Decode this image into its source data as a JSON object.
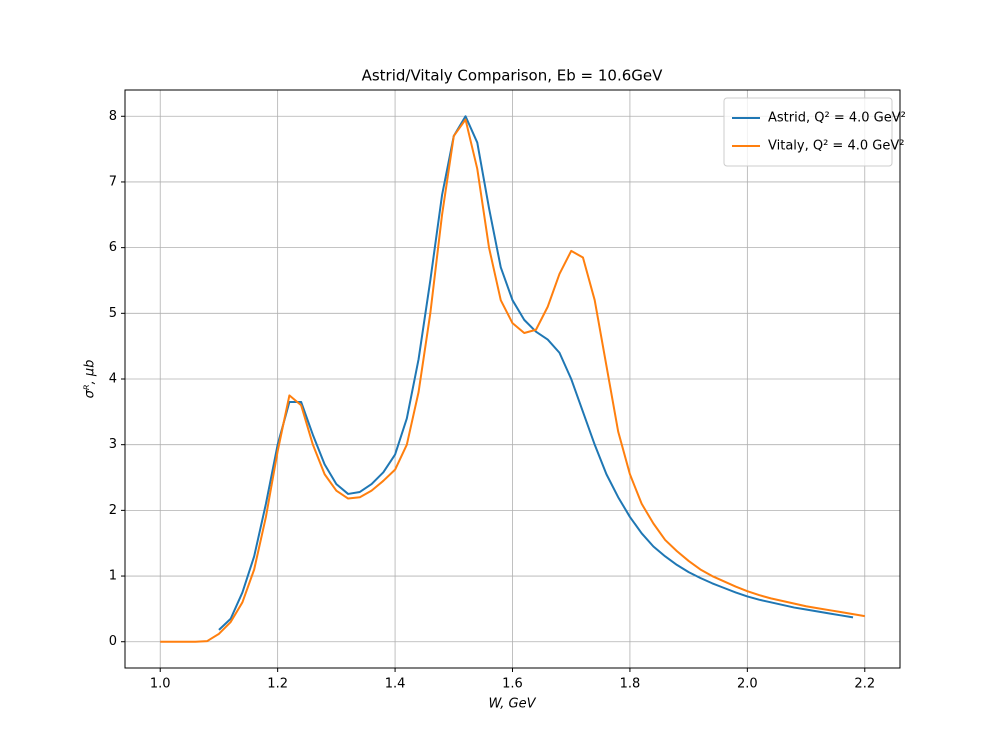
{
  "chart_data": {
    "type": "line",
    "title": "Astrid/Vitaly Comparison, Eb = 10.6GeV",
    "x_label": "W, GeV",
    "y_label": "σᴿ, μb",
    "x": [
      1.0,
      1.02,
      1.04,
      1.06,
      1.08,
      1.1,
      1.12,
      1.14,
      1.16,
      1.18,
      1.2,
      1.22,
      1.24,
      1.26,
      1.28,
      1.3,
      1.32,
      1.34,
      1.36,
      1.38,
      1.4,
      1.42,
      1.44,
      1.46,
      1.48,
      1.5,
      1.52,
      1.54,
      1.56,
      1.58,
      1.6,
      1.62,
      1.64,
      1.66,
      1.68,
      1.7,
      1.72,
      1.74,
      1.76,
      1.78,
      1.8,
      1.82,
      1.84,
      1.86,
      1.88,
      1.9,
      1.92,
      1.94,
      1.96,
      1.98,
      2.0,
      2.02,
      2.04,
      2.06,
      2.08,
      2.1,
      2.12,
      2.14,
      2.16,
      2.18,
      2.2
    ],
    "series": [
      {
        "name": "Astrid, Q² = 4.0 GeV²",
        "color": "#1f77b4",
        "values": [
          null,
          null,
          null,
          null,
          null,
          0.18,
          0.35,
          0.75,
          1.3,
          2.1,
          3.0,
          3.65,
          3.65,
          3.15,
          2.7,
          2.4,
          2.25,
          2.28,
          2.4,
          2.58,
          2.85,
          3.4,
          4.3,
          5.5,
          6.8,
          7.7,
          8.0,
          7.6,
          6.6,
          5.7,
          5.2,
          4.9,
          4.72,
          4.6,
          4.4,
          4.0,
          3.5,
          3.0,
          2.55,
          2.2,
          1.9,
          1.65,
          1.45,
          1.3,
          1.17,
          1.06,
          0.97,
          0.89,
          0.82,
          0.75,
          0.69,
          0.64,
          0.6,
          0.56,
          0.52,
          0.49,
          0.46,
          0.43,
          0.4,
          0.37,
          null
        ]
      },
      {
        "name": "Vitaly, Q² = 4.0 GeV²",
        "color": "#ff7f0e",
        "values": [
          0,
          0,
          0,
          0,
          0.01,
          0.12,
          0.3,
          0.6,
          1.1,
          1.9,
          2.9,
          3.75,
          3.6,
          3.0,
          2.55,
          2.3,
          2.18,
          2.2,
          2.3,
          2.45,
          2.62,
          3.0,
          3.8,
          5.0,
          6.5,
          7.7,
          7.95,
          7.2,
          6.0,
          5.2,
          4.85,
          4.7,
          4.75,
          5.1,
          5.6,
          5.95,
          5.85,
          5.2,
          4.2,
          3.2,
          2.55,
          2.1,
          1.8,
          1.55,
          1.38,
          1.23,
          1.1,
          1.0,
          0.92,
          0.84,
          0.77,
          0.71,
          0.66,
          0.62,
          0.58,
          0.54,
          0.51,
          0.48,
          0.45,
          0.42,
          0.39
        ]
      }
    ],
    "xlim": [
      0.94,
      2.26
    ],
    "ylim": [
      -0.4,
      8.4
    ],
    "xticks": [
      {
        "value": 1.0,
        "label": "1.0"
      },
      1.2,
      1.4,
      1.6,
      1.8,
      {
        "value": 2.0,
        "label": "2.0"
      },
      2.2
    ],
    "yticks": [
      0,
      1,
      2,
      3,
      4,
      5,
      6,
      7,
      8
    ],
    "grid": true,
    "legend": "upper right"
  }
}
